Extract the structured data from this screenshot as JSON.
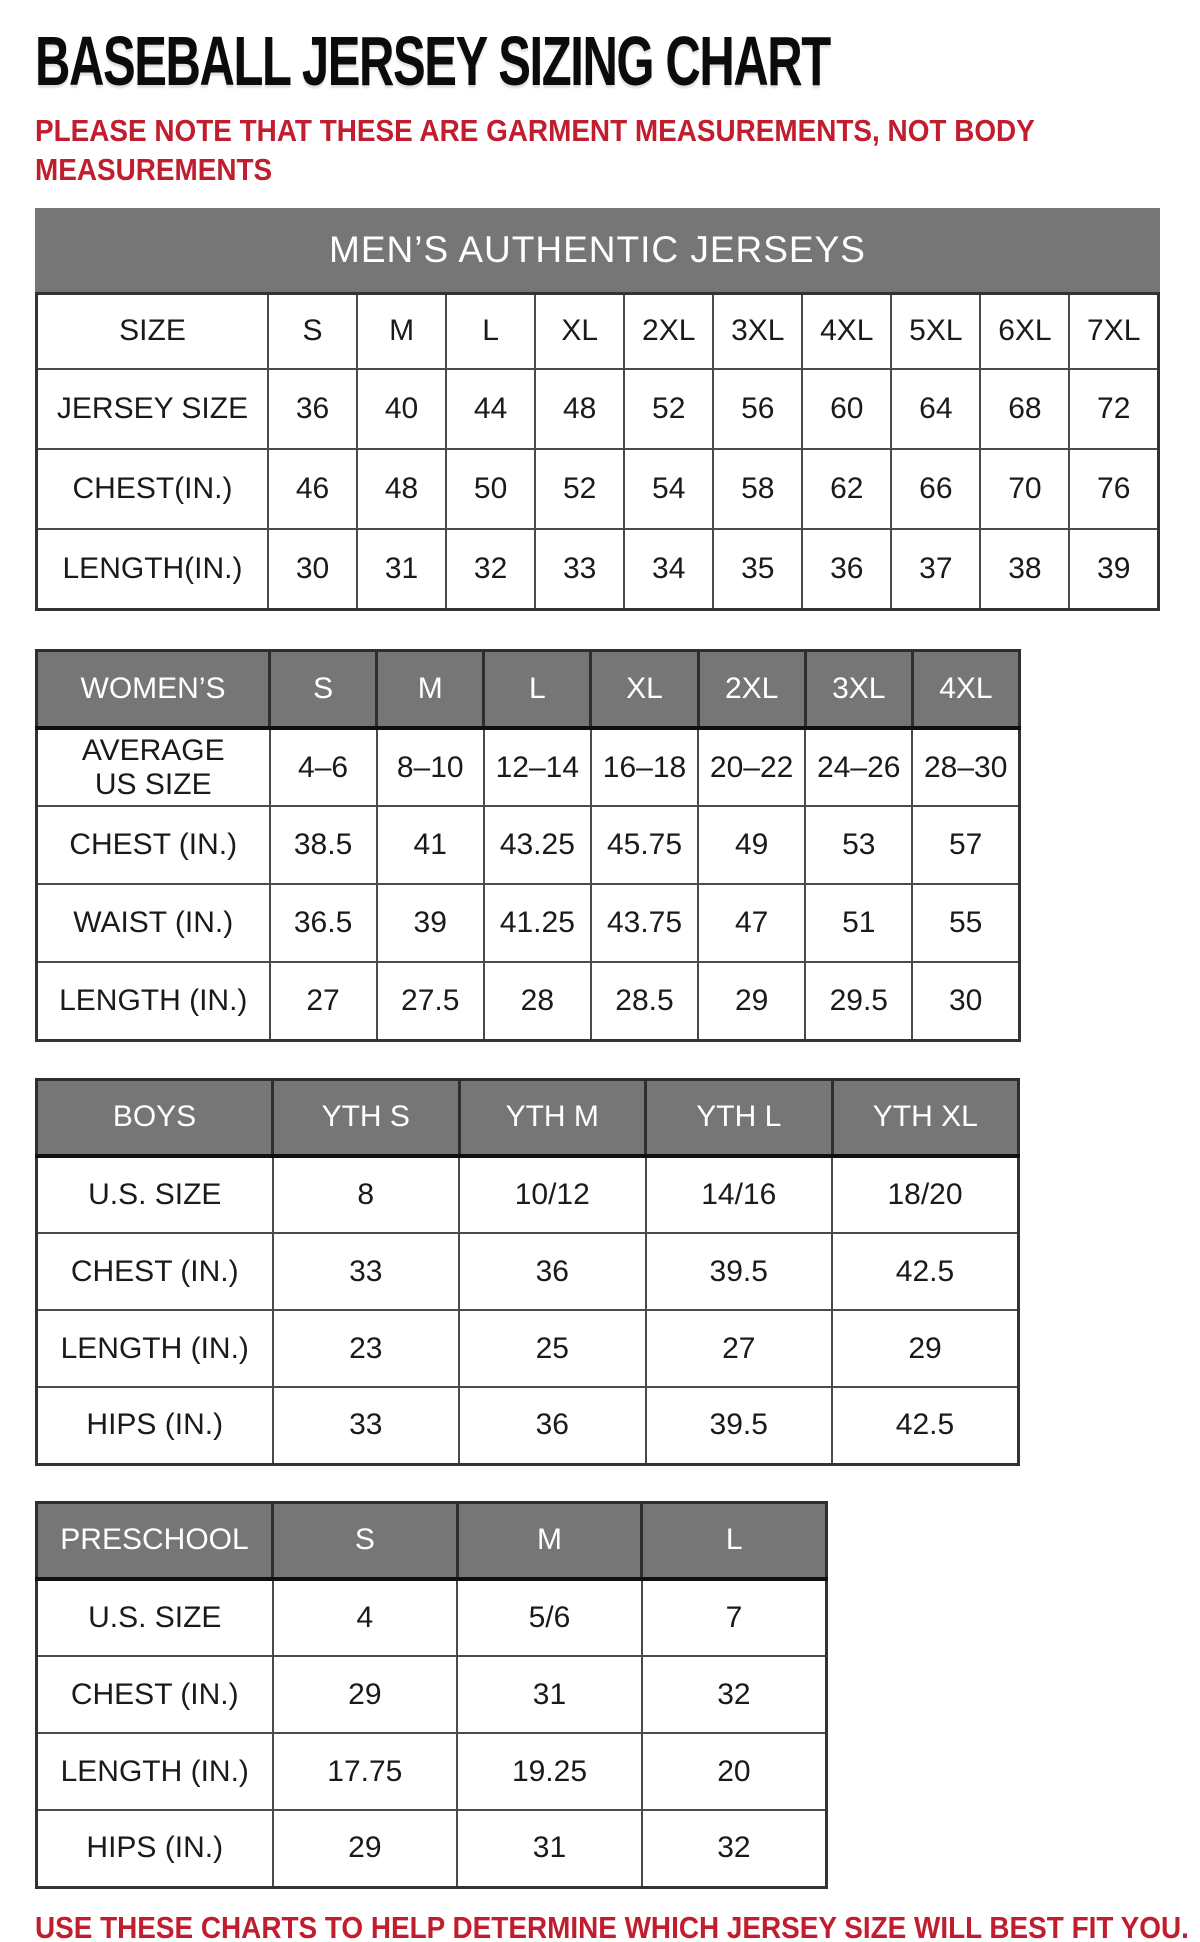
{
  "title": "BASEBALL JERSEY SIZING CHART",
  "note_top_lines": [
    "PLEASE NOTE THAT THESE ARE GARMENT MEASUREMENTS, NOT BODY",
    "MEASUREMENTS"
  ],
  "note_bottom": "USE THESE CHARTS TO HELP DETERMINE WHICH JERSEY SIZE WILL BEST FIT YOU.",
  "colors": {
    "accent_red": "#c01d2e",
    "header_gray": "#767676",
    "border_dark": "#4a4a4a"
  },
  "tables": {
    "mens": {
      "banner": "MEN’S AUTHENTIC JERSEYS",
      "header": {
        "label": "SIZE",
        "cols": [
          "S",
          "M",
          "L",
          "XL",
          "2XL",
          "3XL",
          "4XL",
          "5XL",
          "6XL",
          "7XL"
        ]
      },
      "rows": [
        {
          "label": "JERSEY SIZE",
          "values": [
            "36",
            "40",
            "44",
            "48",
            "52",
            "56",
            "60",
            "64",
            "68",
            "72"
          ]
        },
        {
          "label": "CHEST(IN.)",
          "values": [
            "46",
            "48",
            "50",
            "52",
            "54",
            "58",
            "62",
            "66",
            "70",
            "76"
          ]
        },
        {
          "label": "LENGTH(IN.)",
          "values": [
            "30",
            "31",
            "32",
            "33",
            "34",
            "35",
            "36",
            "37",
            "38",
            "39"
          ]
        }
      ]
    },
    "womens": {
      "header": {
        "label": "WOMEN’S",
        "cols": [
          "S",
          "M",
          "L",
          "XL",
          "2XL",
          "3XL",
          "4XL"
        ]
      },
      "rows": [
        {
          "label": "AVERAGE\nUS SIZE",
          "values": [
            "4–6",
            "8–10",
            "12–14",
            "16–18",
            "20–22",
            "24–26",
            "28–30"
          ]
        },
        {
          "label": "CHEST (IN.)",
          "values": [
            "38.5",
            "41",
            "43.25",
            "45.75",
            "49",
            "53",
            "57"
          ]
        },
        {
          "label": "WAIST (IN.)",
          "values": [
            "36.5",
            "39",
            "41.25",
            "43.75",
            "47",
            "51",
            "55"
          ]
        },
        {
          "label": "LENGTH (IN.)",
          "values": [
            "27",
            "27.5",
            "28",
            "28.5",
            "29",
            "29.5",
            "30"
          ]
        }
      ]
    },
    "boys": {
      "header": {
        "label": "BOYS",
        "cols": [
          "YTH S",
          "YTH M",
          "YTH L",
          "YTH XL"
        ]
      },
      "rows": [
        {
          "label": "U.S. SIZE",
          "values": [
            "8",
            "10/12",
            "14/16",
            "18/20"
          ]
        },
        {
          "label": "CHEST (IN.)",
          "values": [
            "33",
            "36",
            "39.5",
            "42.5"
          ]
        },
        {
          "label": "LENGTH (IN.)",
          "values": [
            "23",
            "25",
            "27",
            "29"
          ]
        },
        {
          "label": "HIPS (IN.)",
          "values": [
            "33",
            "36",
            "39.5",
            "42.5"
          ]
        }
      ]
    },
    "preschool": {
      "header": {
        "label": "PRESCHOOL",
        "cols": [
          "S",
          "M",
          "L"
        ]
      },
      "rows": [
        {
          "label": "U.S. SIZE",
          "values": [
            "4",
            "5/6",
            "7"
          ]
        },
        {
          "label": "CHEST (IN.)",
          "values": [
            "29",
            "31",
            "32"
          ]
        },
        {
          "label": "LENGTH (IN.)",
          "values": [
            "17.75",
            "19.25",
            "20"
          ]
        },
        {
          "label": "HIPS (IN.)",
          "values": [
            "29",
            "31",
            "32"
          ]
        }
      ]
    }
  }
}
